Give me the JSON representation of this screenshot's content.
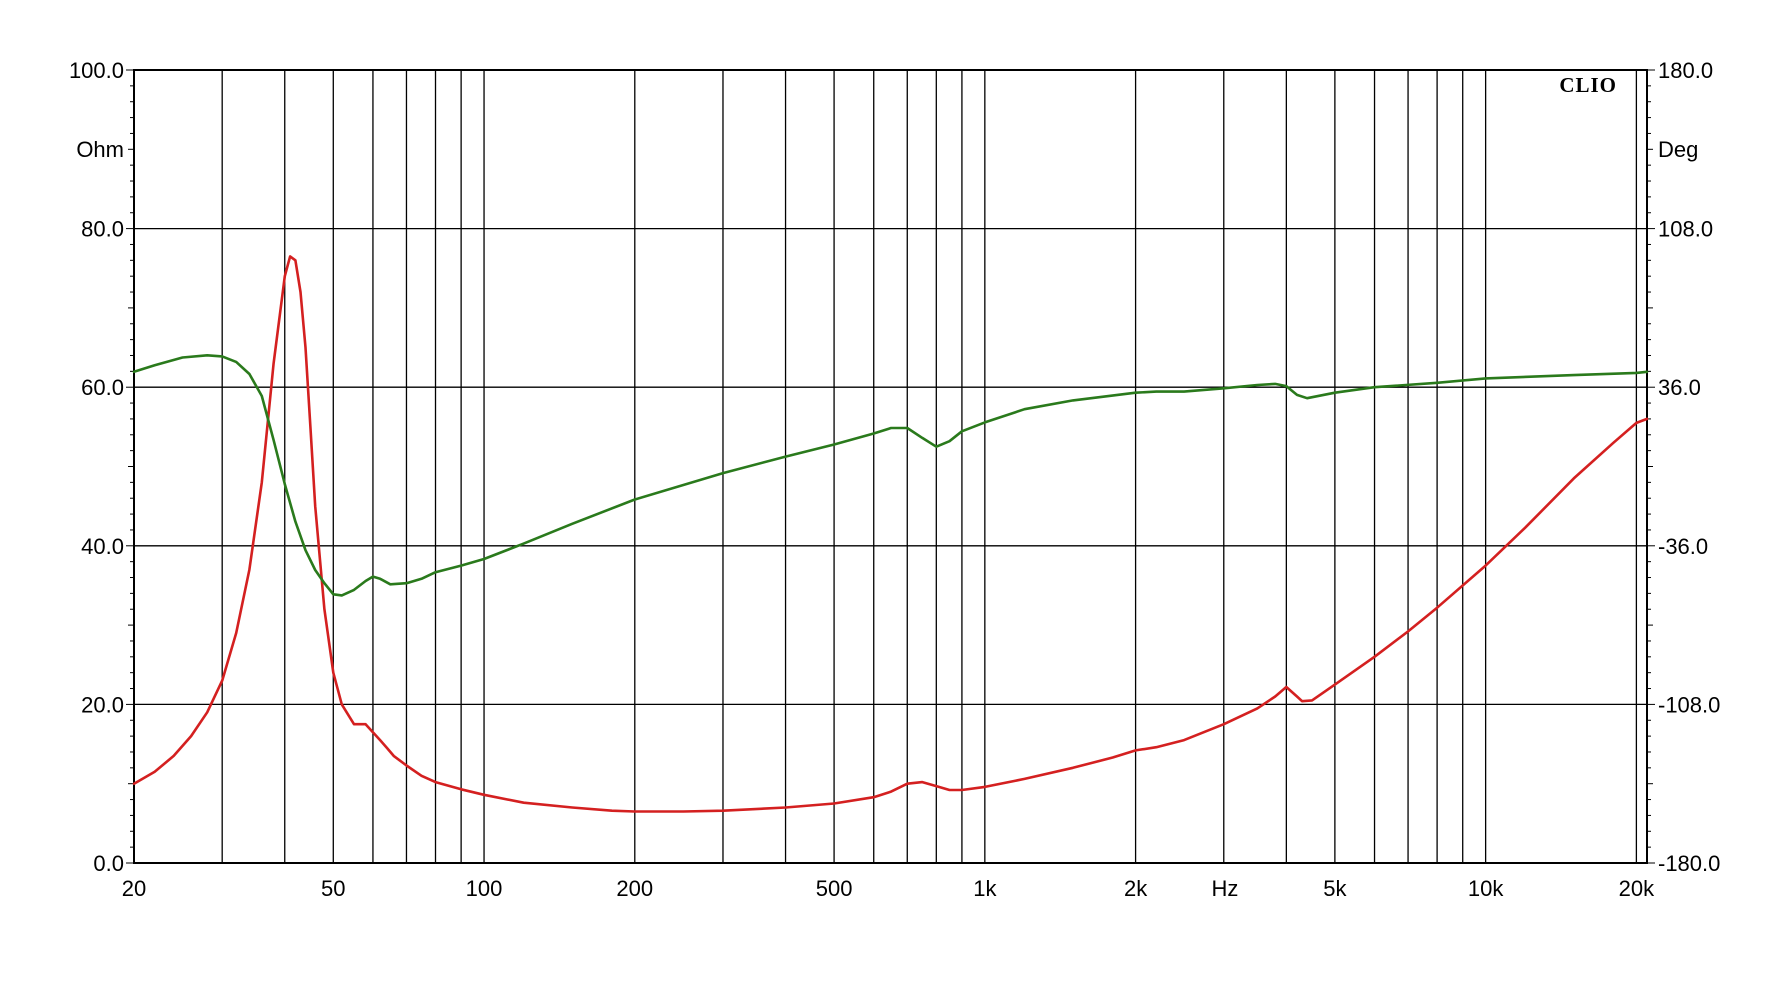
{
  "chart_data": {
    "type": "line",
    "brand": "CLIO",
    "x_unit_label": "Hz",
    "y_left_unit": "Ohm",
    "y_right_unit": "Deg",
    "x_scale": "log",
    "xlim": [
      20,
      21000
    ],
    "ylim_left": [
      0,
      100
    ],
    "ylim_right": [
      -180,
      180
    ],
    "grid": true,
    "x_ticks": [
      {
        "value": 20,
        "label": "20"
      },
      {
        "value": 50,
        "label": "50"
      },
      {
        "value": 100,
        "label": "100"
      },
      {
        "value": 200,
        "label": "200"
      },
      {
        "value": 500,
        "label": "500"
      },
      {
        "value": 1000,
        "label": "1k"
      },
      {
        "value": 2000,
        "label": "2k"
      },
      {
        "value": 5000,
        "label": "5k"
      },
      {
        "value": 10000,
        "label": "10k"
      },
      {
        "value": 20000,
        "label": "20k"
      }
    ],
    "y_left_ticks": [
      {
        "value": 0,
        "label": "0.0"
      },
      {
        "value": 20,
        "label": "20.0"
      },
      {
        "value": 40,
        "label": "40.0"
      },
      {
        "value": 60,
        "label": "60.0"
      },
      {
        "value": 80,
        "label": "80.0"
      },
      {
        "value": 100,
        "label": "100.0"
      }
    ],
    "y_right_ticks": [
      {
        "value": -180,
        "label": "-180.0"
      },
      {
        "value": -108,
        "label": "-108.0"
      },
      {
        "value": -36,
        "label": "-36.0"
      },
      {
        "value": 36,
        "label": "36.0"
      },
      {
        "value": 108,
        "label": "108.0"
      },
      {
        "value": 180,
        "label": "180.0"
      }
    ],
    "series": [
      {
        "axis": "left",
        "color": "#d42020",
        "x": [
          20,
          22,
          24,
          26,
          28,
          30,
          32,
          34,
          36,
          38,
          40,
          41,
          42,
          43,
          44,
          45,
          46,
          48,
          50,
          52,
          55,
          58,
          60,
          62,
          64,
          66,
          70,
          75,
          80,
          90,
          100,
          120,
          150,
          180,
          200,
          250,
          300,
          400,
          500,
          600,
          650,
          700,
          750,
          800,
          850,
          900,
          1000,
          1200,
          1500,
          1800,
          2000,
          2200,
          2500,
          3000,
          3500,
          3800,
          4000,
          4200,
          4300,
          4500,
          5000,
          6000,
          7000,
          8000,
          10000,
          12000,
          15000,
          18000,
          20000,
          21000
        ],
        "y": [
          10,
          11.5,
          13.5,
          16,
          19,
          23,
          29,
          37,
          48,
          63,
          74,
          76.5,
          76,
          72,
          65,
          55,
          45,
          32,
          24,
          20,
          17.5,
          17.5,
          16.5,
          15.5,
          14.5,
          13.5,
          12.3,
          11,
          10.2,
          9.3,
          8.6,
          7.6,
          7,
          6.6,
          6.5,
          6.5,
          6.6,
          7,
          7.5,
          8.3,
          9,
          10,
          10.2,
          9.7,
          9.2,
          9.2,
          9.6,
          10.6,
          12,
          13.3,
          14.2,
          14.6,
          15.5,
          17.5,
          19.5,
          21,
          22.2,
          21,
          20.4,
          20.5,
          22.5,
          26,
          29.2,
          32.2,
          37.5,
          42.3,
          48.5,
          53,
          55.5,
          56
        ]
      },
      {
        "axis": "right",
        "color": "#2a7a1c",
        "x": [
          20,
          22,
          25,
          28,
          30,
          32,
          34,
          36,
          38,
          40,
          42,
          44,
          46,
          48,
          50,
          52,
          55,
          58,
          60,
          62,
          65,
          70,
          75,
          80,
          90,
          100,
          120,
          150,
          200,
          300,
          400,
          500,
          600,
          650,
          700,
          750,
          800,
          850,
          900,
          1000,
          1200,
          1500,
          2000,
          2200,
          2500,
          3000,
          3500,
          3800,
          4000,
          4200,
          4400,
          5000,
          6000,
          8000,
          10000,
          15000,
          20000,
          21000
        ],
        "y": [
          43,
          46,
          49.5,
          50.5,
          50,
          47.5,
          42,
          32,
          12,
          -8,
          -25,
          -38,
          -47,
          -53,
          -58,
          -58.5,
          -56,
          -52,
          -50,
          -51,
          -53.5,
          -53,
          -51,
          -48,
          -45,
          -42,
          -35,
          -26,
          -15,
          -3,
          4.5,
          10,
          15,
          17.5,
          17.5,
          13,
          9,
          11.5,
          16,
          20,
          26,
          30,
          33.5,
          34,
          34,
          35.5,
          37,
          37.5,
          36.5,
          32.5,
          31,
          33.5,
          36,
          38,
          40,
          41.5,
          42.5,
          43
        ]
      }
    ]
  }
}
